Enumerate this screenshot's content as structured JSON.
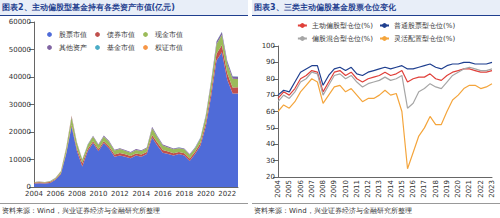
{
  "chart_data": [
    {
      "type": "area",
      "title": "图表2、主动偏股型基金持有各类资产市值(亿元)",
      "annotations": [
        "资料来源：Wind，兴业证券经济与金融研究所整理"
      ],
      "stacked": true,
      "grid": false,
      "legend": "top-left",
      "categories": [
        "2004",
        null,
        null,
        null,
        "2006",
        null,
        null,
        null,
        "2008",
        null,
        null,
        null,
        "2010",
        null,
        null,
        null,
        "2012",
        null,
        null,
        null,
        "2014",
        null,
        null,
        null,
        "2016",
        null,
        null,
        null,
        "2018",
        null,
        null,
        null,
        "2020",
        null,
        null,
        null,
        "2022",
        null,
        null
      ],
      "ylim": [
        0,
        60000
      ],
      "yticks": [
        0,
        10000,
        20000,
        30000,
        40000,
        50000,
        60000
      ],
      "series": [
        {
          "name": "股票市值",
          "color": "#4f6bd8",
          "values": [
            1300,
            1400,
            1300,
            1500,
            2600,
            4600,
            12000,
            22000,
            13000,
            7500,
            13000,
            16000,
            13000,
            16000,
            14000,
            11000,
            11500,
            11000,
            10500,
            11500,
            11000,
            12000,
            18000,
            15000,
            12500,
            12000,
            11500,
            12000,
            11500,
            9500,
            12000,
            15000,
            22000,
            33000,
            46000,
            49000,
            39000,
            34000,
            34000
          ]
        },
        {
          "name": "债券市值",
          "color": "#c0504d",
          "values": [
            300,
            350,
            300,
            350,
            300,
            400,
            500,
            600,
            900,
            1200,
            800,
            600,
            700,
            600,
            700,
            800,
            900,
            900,
            800,
            700,
            800,
            700,
            900,
            1100,
            1000,
            900,
            800,
            700,
            800,
            900,
            800,
            1000,
            1500,
            2000,
            2500,
            2600,
            2400,
            2200,
            2300
          ]
        },
        {
          "name": "现金市值",
          "color": "#9bbb59",
          "values": [
            200,
            200,
            200,
            250,
            350,
            600,
            1500,
            2800,
            2000,
            1200,
            1500,
            1800,
            1600,
            1800,
            1700,
            1500,
            1400,
            1300,
            1200,
            1300,
            1300,
            1400,
            2500,
            2000,
            1600,
            1500,
            1400,
            1400,
            1400,
            1300,
            1300,
            1600,
            2200,
            3000,
            3500,
            3800,
            3500,
            3200,
            3000
          ]
        },
        {
          "name": "其他资产",
          "color": "#8064a2",
          "values": [
            50,
            50,
            50,
            60,
            80,
            150,
            300,
            400,
            300,
            200,
            200,
            250,
            250,
            300,
            300,
            250,
            250,
            250,
            250,
            300,
            300,
            300,
            500,
            400,
            350,
            300,
            300,
            300,
            300,
            300,
            300,
            350,
            500,
            700,
            900,
            1000,
            900,
            800,
            800
          ]
        },
        {
          "name": "基金市值",
          "color": "#4bacc6",
          "values": [
            0,
            0,
            0,
            0,
            0,
            0,
            10,
            20,
            10,
            5,
            5,
            5,
            5,
            5,
            5,
            5,
            5,
            5,
            5,
            5,
            5,
            5,
            10,
            10,
            10,
            10,
            10,
            10,
            10,
            10,
            10,
            20,
            30,
            50,
            80,
            100,
            100,
            80,
            80
          ]
        },
        {
          "name": "权证市值",
          "color": "#f79646",
          "values": [
            0,
            0,
            0,
            0,
            20,
            60,
            150,
            200,
            50,
            10,
            5,
            0,
            0,
            0,
            0,
            0,
            0,
            0,
            0,
            0,
            0,
            0,
            0,
            0,
            0,
            0,
            0,
            0,
            0,
            0,
            0,
            0,
            0,
            0,
            0,
            0,
            0,
            0,
            0
          ]
        }
      ]
    },
    {
      "type": "line",
      "title": "图表3、三类主动偏股基金股票仓位变化",
      "annotations": [
        "资料来源：Wind，兴业证券经济与金融研究所整理"
      ],
      "grid": false,
      "legend": "top",
      "categories": [
        "2004",
        null,
        "2005",
        null,
        "2006",
        null,
        "2007",
        null,
        "2008",
        null,
        "2009",
        null,
        "2010",
        null,
        "2011",
        null,
        "2012",
        null,
        "2013",
        null,
        "2014",
        null,
        "2015",
        null,
        "2016",
        null,
        "2017",
        null,
        "2018",
        null,
        "2019",
        null,
        "2020",
        null,
        "2021",
        null,
        "2022",
        null,
        "2023"
      ],
      "ylim": [
        20,
        100
      ],
      "yticks": [
        20,
        30,
        40,
        50,
        60,
        70,
        80,
        90,
        100
      ],
      "series": [
        {
          "name": "主动偏股型仓位(%)",
          "color": "#e0403a",
          "values": [
            68,
            72,
            70,
            74,
            80,
            82,
            85,
            84,
            72,
            78,
            84,
            85,
            82,
            84,
            80,
            78,
            80,
            81,
            82,
            84,
            82,
            83,
            85,
            78,
            80,
            81,
            81,
            83,
            80,
            79,
            82,
            84,
            85,
            86,
            86,
            85,
            84,
            84,
            85
          ]
        },
        {
          "name": "普通股票型仓位(%)",
          "color": "#1f3f8f",
          "values": [
            70,
            73,
            72,
            78,
            84,
            86,
            88,
            88,
            76,
            82,
            86,
            87,
            85,
            87,
            83,
            82,
            84,
            85,
            86,
            87,
            86,
            87,
            88,
            86,
            86,
            87,
            88,
            89,
            87,
            86,
            88,
            89,
            89,
            90,
            90,
            89,
            89,
            89,
            90
          ]
        },
        {
          "name": "偏股混合型仓位(%)",
          "color": "#a6a6a6",
          "values": [
            66,
            70,
            68,
            72,
            78,
            80,
            84,
            83,
            70,
            76,
            82,
            83,
            80,
            82,
            78,
            75,
            77,
            78,
            79,
            81,
            79,
            80,
            82,
            62,
            65,
            72,
            74,
            77,
            75,
            74,
            78,
            82,
            84,
            86,
            87,
            86,
            85,
            85,
            86
          ]
        },
        {
          "name": "灵活配置型仓位(%)",
          "color": "#f4a53c",
          "values": [
            60,
            64,
            62,
            66,
            72,
            76,
            80,
            78,
            65,
            70,
            75,
            76,
            72,
            74,
            70,
            66,
            68,
            68,
            70,
            73,
            70,
            71,
            60,
            25,
            35,
            45,
            50,
            57,
            52,
            52,
            60,
            67,
            70,
            74,
            76,
            76,
            74,
            75,
            77
          ]
        }
      ]
    }
  ]
}
